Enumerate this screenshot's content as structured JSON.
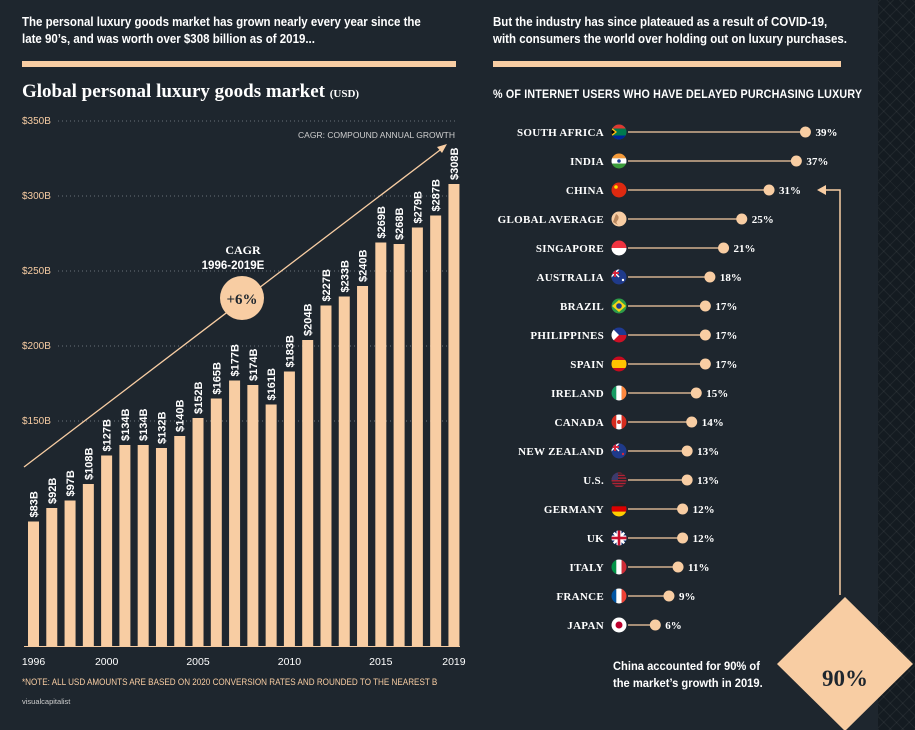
{
  "intro_left": {
    "line1": "The personal luxury goods market has grown nearly every year since the",
    "line2": "late 90’s, and was worth over $308 billion as of 2019..."
  },
  "intro_right": {
    "line1": "But the industry has since plateaued as a result of COVID-19,",
    "line2": "with consumers the world over holding out on luxury purchases."
  },
  "left_chart_title": "Global personal luxury goods market",
  "left_chart_unit": "(USD)",
  "right_chart_title": "% OF INTERNET USERS WHO HAVE DELAYED PURCHASING LUXURY",
  "cagr_note": "CAGR: COMPOUND ANNUAL GROWTH",
  "cagr_label_line1": "CAGR",
  "cagr_label_line2": "1996-2019E",
  "cagr_value": "+6%",
  "footnote": "*NOTE: ALL USD AMOUNTS ARE BASED ON 2020 CONVERSION RATES AND ROUNDED TO THE NEAREST B",
  "credit": "visualcapitalist",
  "china_note_line1": "China accounted for 90% of",
  "china_note_line2": "the market’s growth in 2019.",
  "china_share": "90%",
  "colors": {
    "background": "#1e262e",
    "accent": "#f8cda3",
    "text": "#ffffff"
  },
  "chart_data": [
    {
      "type": "bar",
      "title": "Global personal luxury goods market (USD)",
      "xlabel": "",
      "ylabel": "",
      "ylim": [
        0,
        350
      ],
      "yticks": [
        150,
        200,
        250,
        300,
        350
      ],
      "ytick_labels": [
        "$150B",
        "$200B",
        "$250B",
        "$300B",
        "$350B"
      ],
      "xtick_labels": [
        "1996",
        "2000",
        "2005",
        "2010",
        "2015",
        "2019"
      ],
      "categories": [
        "1996",
        "1997",
        "1998",
        "1999",
        "2000",
        "2001",
        "2002",
        "2003",
        "2004",
        "2005",
        "2006",
        "2007",
        "2008",
        "2009",
        "2010",
        "2011",
        "2012",
        "2013",
        "2014",
        "2015",
        "2016",
        "2017",
        "2018",
        "2019"
      ],
      "values": [
        83,
        92,
        97,
        108,
        127,
        134,
        134,
        132,
        140,
        152,
        165,
        177,
        174,
        161,
        183,
        204,
        227,
        233,
        240,
        269,
        268,
        279,
        287,
        308
      ],
      "labels": [
        "$83B",
        "$92B",
        "$97B",
        "$108B",
        "$127B",
        "$134B",
        "$134B",
        "$132B",
        "$140B",
        "$152B",
        "$165B",
        "$177B",
        "$174B",
        "$161B",
        "$183B",
        "$204B",
        "$227B",
        "$233B",
        "$240B",
        "$269B",
        "$268B",
        "$279B",
        "$287B",
        "$308B"
      ]
    },
    {
      "type": "scatter",
      "title": "% OF INTERNET USERS WHO HAVE DELAYED PURCHASING LUXURY",
      "xlim": [
        0,
        45
      ],
      "categories": [
        "SOUTH AFRICA",
        "INDIA",
        "CHINA",
        "GLOBAL AVERAGE",
        "SINGAPORE",
        "AUSTRALIA",
        "BRAZIL",
        "PHILIPPINES",
        "SPAIN",
        "IRELAND",
        "CANADA",
        "NEW ZEALAND",
        "U.S.",
        "GERMANY",
        "UK",
        "ITALY",
        "FRANCE",
        "JAPAN"
      ],
      "values": [
        39,
        37,
        31,
        25,
        21,
        18,
        17,
        17,
        17,
        15,
        14,
        13,
        13,
        12,
        12,
        11,
        9,
        6
      ],
      "labels": [
        "39%",
        "37%",
        "31%",
        "25%",
        "21%",
        "18%",
        "17%",
        "17%",
        "17%",
        "15%",
        "14%",
        "13%",
        "13%",
        "12%",
        "12%",
        "11%",
        "9%",
        "6%"
      ],
      "flag_icons": [
        "south-africa-flag-icon",
        "india-flag-icon",
        "china-flag-icon",
        "globe-icon",
        "singapore-flag-icon",
        "australia-flag-icon",
        "brazil-flag-icon",
        "philippines-flag-icon",
        "spain-flag-icon",
        "ireland-flag-icon",
        "canada-flag-icon",
        "new-zealand-flag-icon",
        "us-flag-icon",
        "germany-flag-icon",
        "uk-flag-icon",
        "italy-flag-icon",
        "france-flag-icon",
        "japan-flag-icon"
      ],
      "highlight": "CHINA"
    }
  ]
}
